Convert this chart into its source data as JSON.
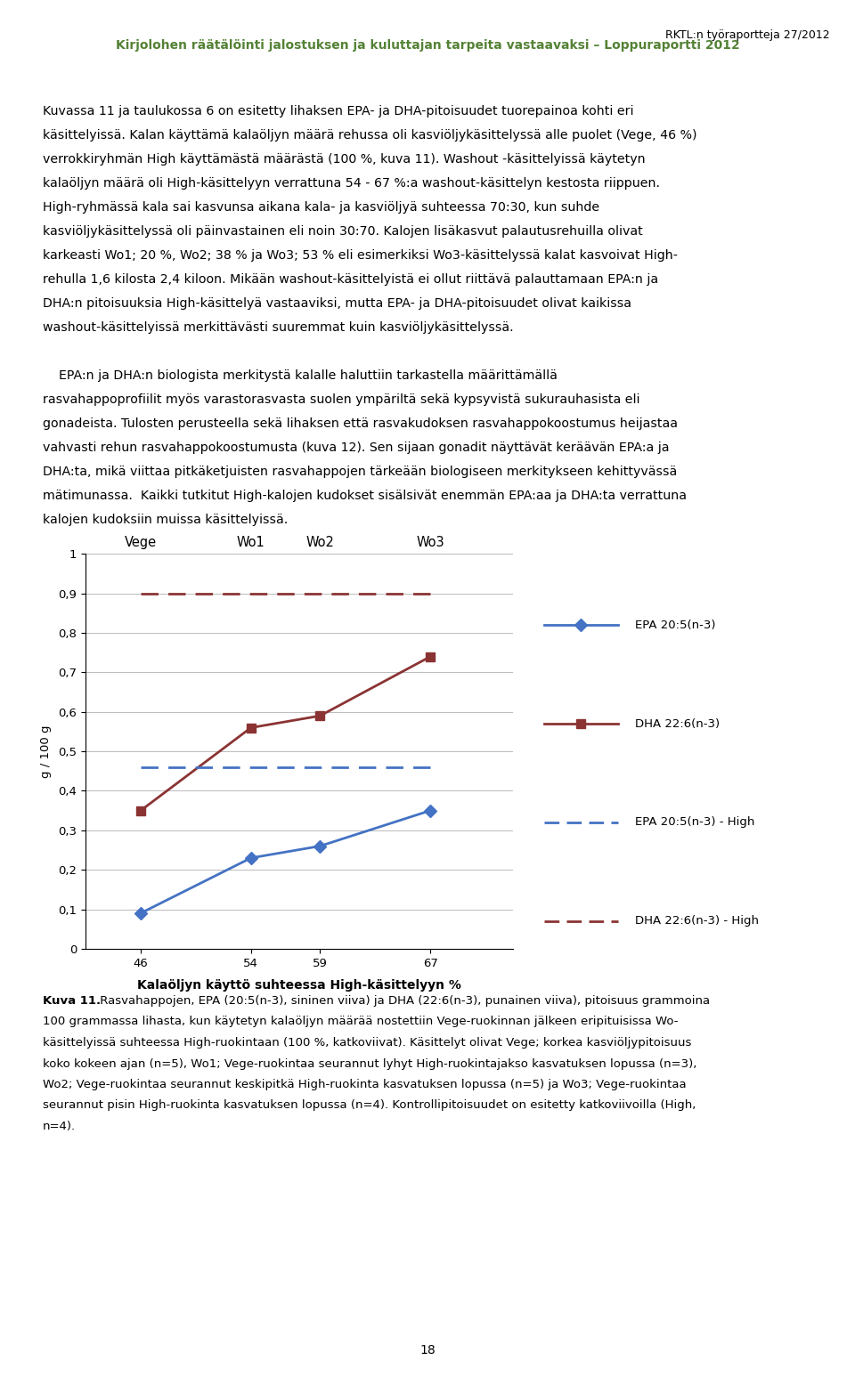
{
  "x_values": [
    46,
    54,
    59,
    67
  ],
  "x_labels_top": [
    "Vege",
    "Wo1",
    "Wo2",
    "Wo3"
  ],
  "x_labels_bottom": [
    "46",
    "54",
    "59",
    "67"
  ],
  "epa_solid": [
    0.09,
    0.23,
    0.26,
    0.35
  ],
  "dha_solid": [
    0.35,
    0.56,
    0.59,
    0.74
  ],
  "epa_high": [
    0.46,
    0.46,
    0.46,
    0.46
  ],
  "dha_high": [
    0.9,
    0.9,
    0.9,
    0.9
  ],
  "epa_color": "#4472C4",
  "dha_color": "#8B3333",
  "ylim": [
    0,
    1
  ],
  "yticks": [
    0,
    0.1,
    0.2,
    0.3,
    0.4,
    0.5,
    0.6,
    0.7,
    0.8,
    0.9,
    1.0
  ],
  "ylabel": "g / 100 g",
  "xlabel": "Kalaöljyn käyttö suhteessa High-käsittelyyn %",
  "legend_epa": "EPA 20:5(n-3)",
  "legend_dha": "DHA 22:6(n-3)",
  "legend_epa_high": "EPA 20:5(n-3) - High",
  "legend_dha_high": "DHA 22:6(n-3) - High",
  "header_right": "RKTL:n työraportteja 27/2012",
  "header_center": "Kirjolohen räätälöinti jalostuksen ja kuluttajan tarpeita vastaavaksi – Loppuraportti 2012",
  "header_color": "#548235",
  "background_color": "#ffffff",
  "page_number": "18",
  "body1": "Kuvassa 11 ja taulukossa 6 on esitetty lihaksen EPA- ja DHA-pitoisuudet tuorepainoa kohti eri käsittelyissä. Kalan käyttämä kalaöljyn määrä rehussa oli kasvilöljykäsittelyssä alle puolet (Vege, 46 %) verrokkiryhmän High käyttämästä määrästä (100 %, kuva 11). Washout -käsittelyissä käytetyn kalaöljyn määrä oli High-käsittelyyn verrattuna 54 - 67 %:a washout-käsittelyn kestosta riippuen. High-ryhmässä kala sai kasvunsa aikana kala- ja kasvilölj yä suhteessa 70:30, kun suhde kasvilöljykäsittelyssä oli päinvastainen eli noin 30:70. Kalojen lisäkasvut palautusrehuilla olivat karkeasti Wo1; 20 %, Wo2; 38 % ja Wo3; 53 % eli esimerkiksi Wo3-käsittelyssä kalat kasvoivat High-rehulla 1,6 kilosta 2,4 kiloon. Mikään washout-käsittelyistä ei ollut riittävä palauttamaan EPA:n ja DHA:n pitoisuuksia High-käsittelYä vastaaviksi, mutta EPA- ja DHA-pitoisuudet olivat kaikissa washout-käsittelyissä merkittävästi suuremmat kuin kasvilöljykäsittelyssä.",
  "body2": "    EPA:n ja DHA:n biologista merkitystä kalalle haluttiin tarkastella määrittämällä rasvahappoprofiilit myös varastorasvasta suolen ympärillä sekä kypsyvista sukurauhasista eli gonadeista. Tulosten perusteella sekä lihaksen että rasvakudoksen rasvahappokoostumus heijastaa vahvasti rehun rasvahappokoostumusta (kuva 12). Sen sijaan gonadit näyttävät keräävän EPA:a ja DHA:ta, mikä viittaa pitkäketjuisten rasvahappojen tärkeään biologiseen merkitykseen kehittyvässä mätimunassa.  Kaikki tutkitut High-kalojen kudokset sisälsivät enemmän EPA:aa ja DHA:ta verrattuna kalojen kudoksiin muissa käsittelyissä.",
  "caption_bold": "Kuva 11.",
  "caption_rest": " Rasvahappojen, EPA (20:5(n-3), sininen viiva) ja DHA (22:6(n-3), punainen viiva), pitoisuus grammoina 100 grammassa lihasta, kun käytetyn kalaöljyn määrää nostettiin Vege-ruokinnan jälkeen eripituisissa Wo-käsittelyissä suhteessa High-ruokintaan (100 %, katkoviivat). Käsittelyt olivat Vege; korkea kasvilöljypitoisuus koko kokeen ajan (n=5), Wo1; Vege-ruokintaa seurannut lyhyt High-ruokintajakso kasvatuksen lopussa (n=3), Wo2; Vege-ruokintaa seurannut keskipitkä High-ruokinta kasvatuksen lopussa (n=5) ja Wo3; Vege-ruokintaa seurannut pisin High-ruokinta kasvatuksen lopussa (n=4). Kontrollipitoisuudet on esitetty katkoviivoilla (High, n=4)."
}
